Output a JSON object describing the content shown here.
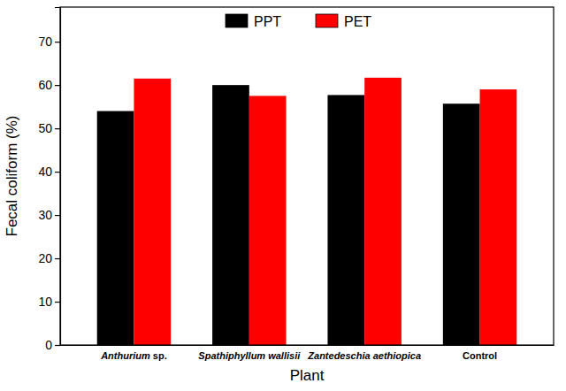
{
  "chart_data": {
    "type": "bar",
    "x_label": "Plant",
    "y_label": "Fecal coliform (%)",
    "categories": [
      "Anthurium sp.",
      "Spathiphyllum wallisii",
      "Zantedeschia aethiopica",
      "Control"
    ],
    "series": [
      {
        "name": "PPT",
        "color": "#000000",
        "values": [
          54.0,
          60.0,
          57.7,
          55.7
        ]
      },
      {
        "name": "PET",
        "color": "#ff0000",
        "values": [
          61.5,
          57.5,
          61.7,
          59.0
        ]
      }
    ],
    "ylim": [
      0,
      78
    ],
    "yticks": [
      0,
      10,
      20,
      30,
      40,
      50,
      60,
      70
    ],
    "grid": false,
    "legend": "top"
  }
}
